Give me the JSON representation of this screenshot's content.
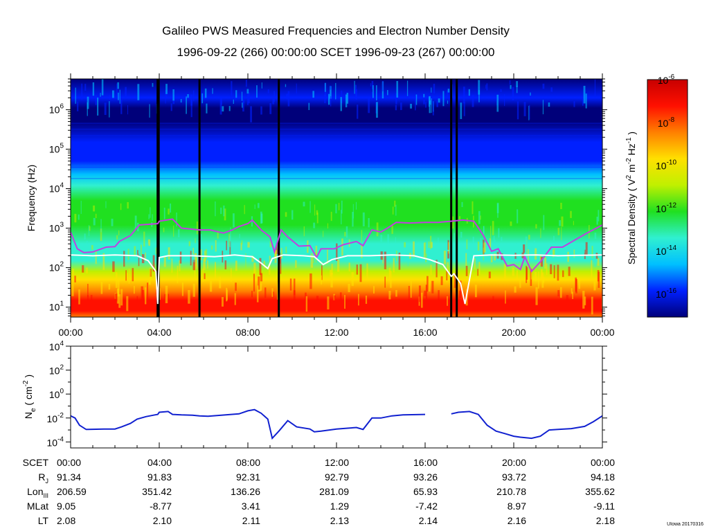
{
  "title": "Galileo PWS Measured Frequencies and Electron Number Density",
  "subtitle": "1996-09-22 (266) 00:00:00 SCET 1996-09-23 (267) 00:00:00",
  "credit": "UIowa 20170316",
  "chart_data": [
    {
      "type": "heatmap",
      "name": "spectrogram",
      "ylabel": "Frequency (Hz)",
      "ylabel_scale": "log",
      "ylim": [
        5.6,
        6000000
      ],
      "yticks": [
        {
          "exp": "1"
        },
        {
          "exp": "2"
        },
        {
          "exp": "3"
        },
        {
          "exp": "4"
        },
        {
          "exp": "5"
        },
        {
          "exp": "6"
        }
      ],
      "xlim": [
        0,
        24
      ],
      "xticks": [
        "00:00",
        "04:00",
        "08:00",
        "12:00",
        "16:00",
        "20:00",
        "00:00"
      ],
      "colorbar": {
        "label": "Spectral Density",
        "units_parts": [
          "( V",
          "2",
          " m",
          "-2",
          " Hz",
          "-1",
          " )"
        ],
        "range_exp": [
          -17.1,
          -6
        ],
        "ticks": [
          {
            "exp": "-6"
          },
          {
            "exp": "-8"
          },
          {
            "exp": "-10"
          },
          {
            "exp": "-12"
          },
          {
            "exp": "-14"
          },
          {
            "exp": "-16"
          }
        ],
        "colors": [
          "#00007a",
          "#0020ff",
          "#00c0ff",
          "#30f0d0",
          "#20e020",
          "#c0f000",
          "#ffe000",
          "#ff8000",
          "#ff1000",
          "#c80000"
        ]
      },
      "data_gaps_hours": [
        3.93,
        5.82,
        9.4,
        17.18,
        17.43
      ],
      "series": [
        {
          "name": "upper hybrid / measured line",
          "color": "#c040e0",
          "points": [
            [
              0,
              800
            ],
            [
              0.3,
              300
            ],
            [
              0.6,
              240
            ],
            [
              1.0,
              250
            ],
            [
              1.6,
              330
            ],
            [
              2.0,
              340
            ],
            [
              2.2,
              460
            ],
            [
              2.7,
              650
            ],
            [
              3.1,
              1200
            ],
            [
              3.93,
              1300
            ],
            [
              4.0,
              1500
            ],
            [
              4.6,
              1700
            ],
            [
              5.0,
              1000
            ],
            [
              5.82,
              900
            ],
            [
              6.3,
              900
            ],
            [
              6.9,
              750
            ],
            [
              7.3,
              900
            ],
            [
              7.6,
              1100
            ],
            [
              8.0,
              1300
            ],
            [
              8.2,
              1600
            ],
            [
              8.6,
              900
            ],
            [
              9.0,
              600
            ],
            [
              9.2,
              250
            ],
            [
              9.5,
              900
            ],
            [
              9.8,
              600
            ],
            [
              10.3,
              350
            ],
            [
              10.8,
              360
            ],
            [
              11.1,
              180
            ],
            [
              11.3,
              300
            ],
            [
              11.9,
              300
            ],
            [
              12.3,
              380
            ],
            [
              12.9,
              460
            ],
            [
              13.2,
              360
            ],
            [
              13.6,
              900
            ],
            [
              14.0,
              800
            ],
            [
              14.3,
              1000
            ],
            [
              14.7,
              1400
            ],
            [
              15.3,
              1350
            ],
            [
              16.0,
              1400
            ],
            [
              16.6,
              1400
            ],
            [
              17.18,
              1500
            ],
            [
              17.7,
              1600
            ],
            [
              18.2,
              1500
            ],
            [
              18.6,
              700
            ],
            [
              19.0,
              260
            ],
            [
              19.3,
              300
            ],
            [
              19.7,
              110
            ],
            [
              20.0,
              120
            ],
            [
              20.3,
              90
            ],
            [
              20.5,
              190
            ],
            [
              20.8,
              80
            ],
            [
              21.2,
              140
            ],
            [
              21.7,
              330
            ],
            [
              22.2,
              330
            ],
            [
              22.7,
              480
            ],
            [
              23.3,
              750
            ],
            [
              24,
              1200
            ]
          ]
        },
        {
          "name": "electron cyclotron / lower line",
          "color": "#ffffff",
          "points": [
            [
              0,
              210
            ],
            [
              1,
              200
            ],
            [
              2,
              210
            ],
            [
              3.0,
              200
            ],
            [
              3.5,
              150
            ],
            [
              3.85,
              80
            ],
            [
              3.93,
              12
            ],
            [
              4.0,
              180
            ],
            [
              4.4,
              200
            ],
            [
              5.5,
              200
            ],
            [
              6.5,
              190
            ],
            [
              7.4,
              210
            ],
            [
              8.2,
              190
            ],
            [
              8.6,
              130
            ],
            [
              8.9,
              95
            ],
            [
              9.1,
              170
            ],
            [
              9.6,
              210
            ],
            [
              10.5,
              200
            ],
            [
              11.0,
              190
            ],
            [
              11.4,
              120
            ],
            [
              11.8,
              160
            ],
            [
              12.5,
              200
            ],
            [
              13.5,
              200
            ],
            [
              14.5,
              210
            ],
            [
              15.5,
              200
            ],
            [
              16.2,
              160
            ],
            [
              16.8,
              120
            ],
            [
              17.18,
              60
            ],
            [
              17.3,
              70
            ],
            [
              17.6,
              40
            ],
            [
              17.8,
              12
            ],
            [
              18.2,
              200
            ],
            [
              19.0,
              210
            ],
            [
              20.0,
              205
            ],
            [
              21,
              210
            ],
            [
              22,
              200
            ],
            [
              23,
              205
            ],
            [
              24,
              210
            ]
          ]
        }
      ]
    },
    {
      "type": "line",
      "name": "electron density",
      "ylabel_base": "N",
      "ylabel_sub": "e",
      "ylabel_units": [
        "( cm",
        "-2",
        " )"
      ],
      "ylabel_scale": "log",
      "ylim_exp": [
        -4.5,
        4
      ],
      "yticks": [
        {
          "exp": "-4"
        },
        {
          "exp": "-2"
        },
        {
          "exp": "0"
        },
        {
          "exp": "2"
        },
        {
          "exp": "4"
        }
      ],
      "xlim": [
        0,
        24
      ],
      "series": [
        {
          "name": "Ne",
          "color": "#1020d0",
          "points": [
            [
              0,
              0.015
            ],
            [
              0.2,
              0.01
            ],
            [
              0.4,
              0.0025
            ],
            [
              0.7,
              0.0011
            ],
            [
              1.5,
              0.0012
            ],
            [
              2.0,
              0.0012
            ],
            [
              2.3,
              0.0018
            ],
            [
              2.7,
              0.0035
            ],
            [
              3.0,
              0.008
            ],
            [
              3.4,
              0.013
            ],
            [
              3.8,
              0.018
            ],
            [
              3.93,
              0.02
            ],
            [
              4.0,
              0.03
            ],
            [
              4.4,
              0.035
            ],
            [
              4.6,
              0.02
            ],
            [
              5.0,
              0.018
            ],
            [
              5.5,
              0.017
            ],
            [
              5.82,
              0.015
            ],
            [
              6.2,
              0.014
            ],
            [
              7.0,
              0.018
            ],
            [
              7.6,
              0.022
            ],
            [
              8.0,
              0.04
            ],
            [
              8.3,
              0.05
            ],
            [
              8.6,
              0.025
            ],
            [
              8.9,
              0.008
            ],
            [
              9.1,
              0.0002
            ],
            [
              9.4,
              0.0008
            ],
            [
              9.8,
              0.006
            ],
            [
              10.2,
              0.0018
            ],
            [
              10.8,
              0.0012
            ],
            [
              11.0,
              0.0007
            ],
            [
              11.3,
              0.0008
            ],
            [
              12.0,
              0.0012
            ],
            [
              12.5,
              0.0014
            ],
            [
              12.9,
              0.0016
            ],
            [
              13.2,
              0.0011
            ],
            [
              13.6,
              0.01
            ],
            [
              14.0,
              0.01
            ],
            [
              14.5,
              0.015
            ],
            [
              15.0,
              0.018
            ],
            [
              16.0,
              0.02
            ],
            [
              17.18,
              0.022
            ],
            [
              17.5,
              0.03
            ],
            [
              18.0,
              0.035
            ],
            [
              18.4,
              0.02
            ],
            [
              18.8,
              0.0025
            ],
            [
              19.2,
              0.0008
            ],
            [
              19.6,
              0.0005
            ],
            [
              20.0,
              0.0003
            ],
            [
              20.3,
              0.00025
            ],
            [
              20.8,
              0.0002
            ],
            [
              21.2,
              0.0003
            ],
            [
              21.6,
              0.001
            ],
            [
              22.0,
              0.0011
            ],
            [
              22.6,
              0.0013
            ],
            [
              23.2,
              0.002
            ],
            [
              23.6,
              0.005
            ],
            [
              24,
              0.015
            ]
          ]
        }
      ]
    }
  ],
  "ephemeris": {
    "rows": [
      {
        "label": "SCET",
        "label_sub": "",
        "values": [
          "00:00",
          "04:00",
          "08:00",
          "12:00",
          "16:00",
          "20:00",
          "00:00"
        ]
      },
      {
        "label": "R",
        "label_sub": "J",
        "values": [
          "91.34",
          "91.83",
          "92.31",
          "92.79",
          "93.26",
          "93.72",
          "94.18"
        ]
      },
      {
        "label": "Lon",
        "label_sub": "III",
        "values": [
          "206.59",
          "351.42",
          "136.26",
          "281.09",
          "65.93",
          "210.78",
          "355.62"
        ]
      },
      {
        "label": "MLat",
        "label_sub": "",
        "values": [
          "9.05",
          "-8.77",
          "3.41",
          "1.29",
          "-7.42",
          "8.97",
          "-9.11"
        ]
      },
      {
        "label": "LT",
        "label_sub": "",
        "values": [
          "2.08",
          "2.10",
          "2.11",
          "2.13",
          "2.14",
          "2.16",
          "2.18"
        ]
      }
    ]
  }
}
